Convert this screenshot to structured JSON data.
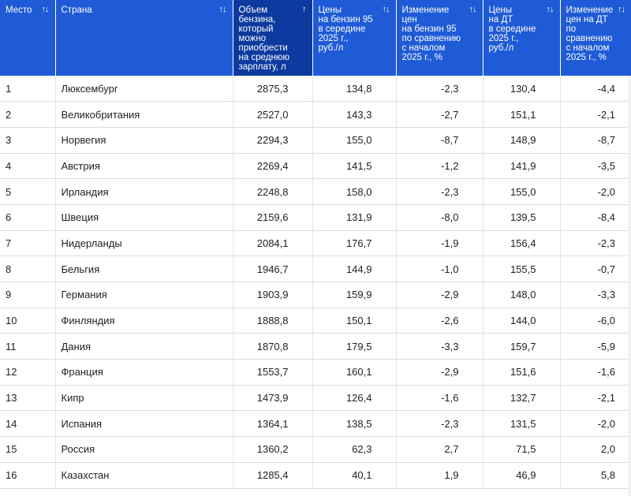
{
  "columns": [
    {
      "lines": [
        "Место"
      ],
      "sort": "↑↓"
    },
    {
      "lines": [
        "Страна"
      ],
      "sort": "↑↓"
    },
    {
      "lines": [
        "Объем",
        "бензина,",
        "который",
        "можно",
        "приобрести",
        "на среднюю",
        "зарплату, л"
      ],
      "sort": "↑"
    },
    {
      "lines": [
        "Цены",
        "на бензин 95",
        "в середине",
        "2025 г.,",
        "руб./л"
      ],
      "sort": "↑↓"
    },
    {
      "lines": [
        "Изменение",
        "цен",
        "на бензин 95",
        "по сравнению",
        "с началом",
        "2025 г., %"
      ],
      "sort": "↑↓"
    },
    {
      "lines": [
        "Цены",
        "на ДТ",
        "в середине",
        "2025 г.,",
        "руб./л"
      ],
      "sort": "↑↓"
    },
    {
      "lines": [
        "Изменение",
        "цен на ДТ",
        "по сравнению",
        "с началом",
        "2025 г., %"
      ],
      "sort": "↑↓"
    }
  ],
  "rows": [
    [
      "1",
      "Люксембург",
      "2875,3",
      "134,8",
      "-2,3",
      "130,4",
      "-4,4"
    ],
    [
      "2",
      "Великобритания",
      "2527,0",
      "143,3",
      "-2,7",
      "151,1",
      "-2,1"
    ],
    [
      "3",
      "Норвегия",
      "2294,3",
      "155,0",
      "-8,7",
      "148,9",
      "-8,7"
    ],
    [
      "4",
      "Австрия",
      "2269,4",
      "141,5",
      "-1,2",
      "141,9",
      "-3,5"
    ],
    [
      "5",
      "Ирландия",
      "2248,8",
      "158,0",
      "-2,3",
      "155,0",
      "-2,0"
    ],
    [
      "6",
      "Швеция",
      "2159,6",
      "131,9",
      "-8,0",
      "139,5",
      "-8,4"
    ],
    [
      "7",
      "Нидерланды",
      "2084,1",
      "176,7",
      "-1,9",
      "156,4",
      "-2,3"
    ],
    [
      "8",
      "Бельгия",
      "1946,7",
      "144,9",
      "-1,0",
      "155,5",
      "-0,7"
    ],
    [
      "9",
      "Германия",
      "1903,9",
      "159,9",
      "-2,9",
      "148,0",
      "-3,3"
    ],
    [
      "10",
      "Финляндия",
      "1888,8",
      "150,1",
      "-2,6",
      "144,0",
      "-6,0"
    ],
    [
      "11",
      "Дания",
      "1870,8",
      "179,5",
      "-3,3",
      "159,7",
      "-5,9"
    ],
    [
      "12",
      "Франция",
      "1553,7",
      "160,1",
      "-2,9",
      "151,6",
      "-1,6"
    ],
    [
      "13",
      "Кипр",
      "1473,9",
      "126,4",
      "-1,6",
      "132,7",
      "-2,1"
    ],
    [
      "14",
      "Испания",
      "1364,1",
      "138,5",
      "-2,3",
      "131,5",
      "-2,0"
    ],
    [
      "15",
      "Россия",
      "1360,2",
      "62,3",
      "2,7",
      "71,5",
      "2,0"
    ],
    [
      "16",
      "Казахстан",
      "1285,4",
      "40,1",
      "1,9",
      "46,9",
      "5,8"
    ]
  ],
  "colors": {
    "header": "#1f5bd6",
    "header_active": "#0c3a9e"
  }
}
